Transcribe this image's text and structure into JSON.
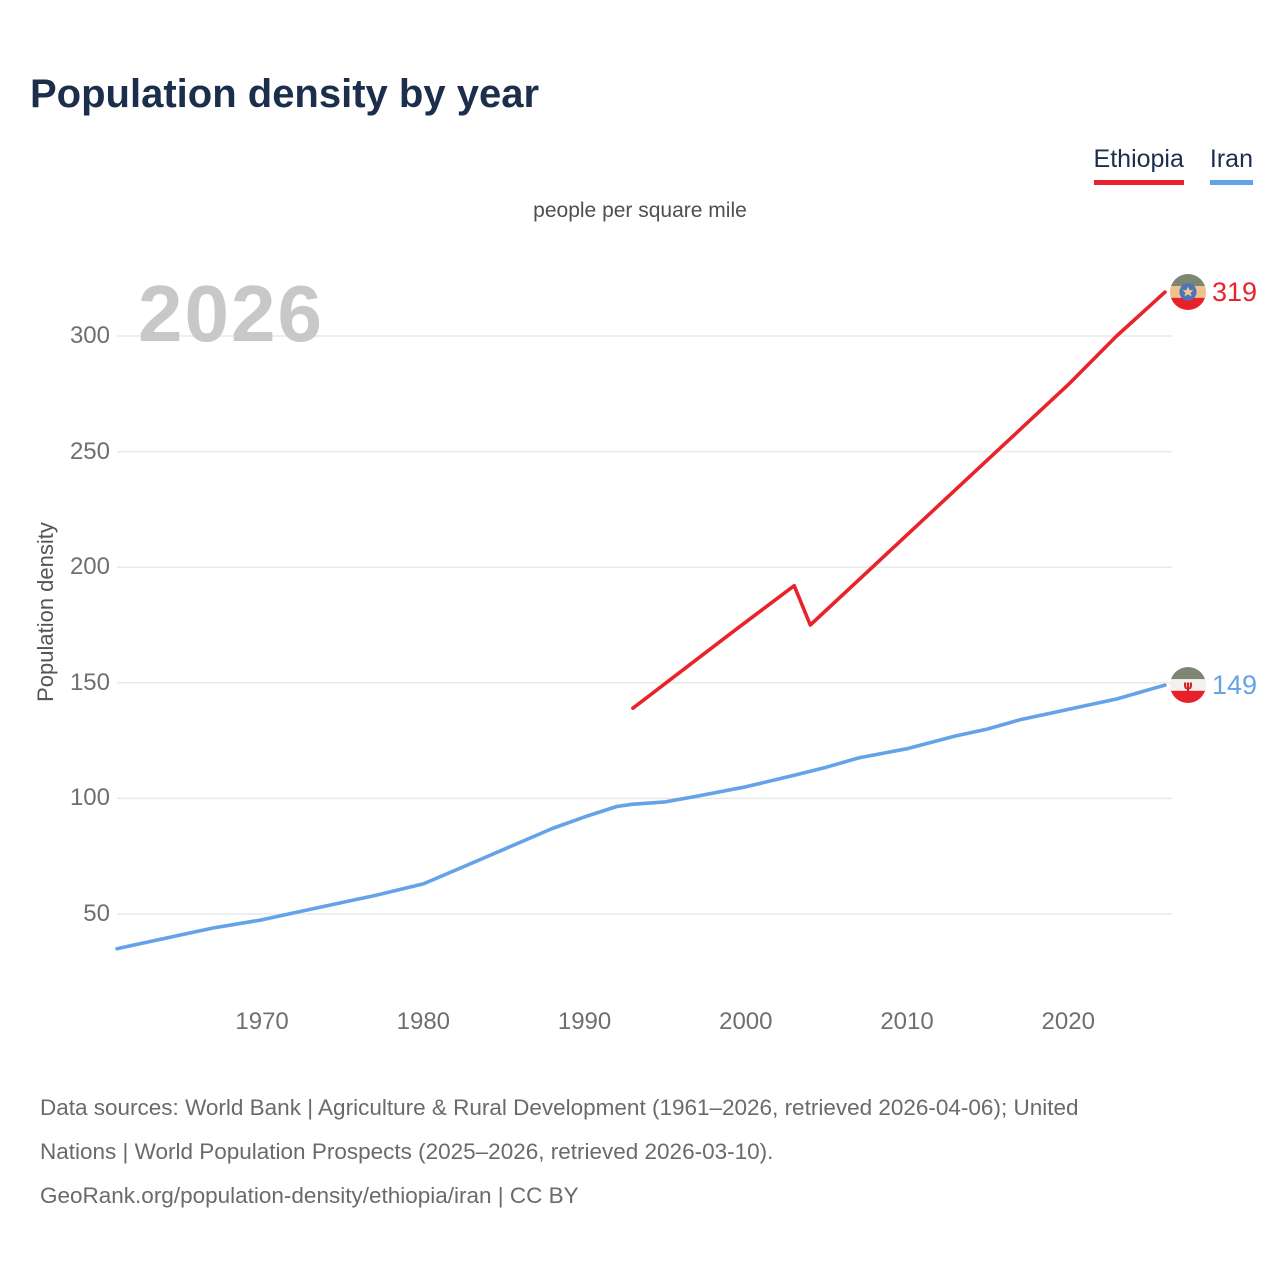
{
  "title": "Population density by year",
  "subtitle": "people per square mile",
  "watermark_year": "2026",
  "legend": [
    {
      "label": "Ethiopia",
      "color": "#e8232a"
    },
    {
      "label": "Iran",
      "color": "#64a3e8"
    }
  ],
  "y_axis_title": "Population density",
  "end_labels": {
    "ethiopia": "319",
    "iran": "149"
  },
  "icons": {
    "ethiopia": "ethiopia-flag-icon",
    "iran": "iran-flag-icon"
  },
  "footer": {
    "lines": [
      "Data sources: World Bank | Agriculture & Rural Development (1961–2026, retrieved 2026-04-06); United",
      "Nations | World Population Prospects (2025–2026, retrieved 2026-03-10).",
      "GeoRank.org/population-density/ethiopia/iran | CC BY"
    ]
  },
  "chart_data": {
    "type": "line",
    "title": "Population density by year",
    "subtitle": "people per square mile",
    "ylabel": "Population density",
    "unit": "people per square mile",
    "xlim": [
      1961,
      2026
    ],
    "ylim": [
      30,
      330
    ],
    "x_ticks": [
      1970,
      1980,
      1990,
      2000,
      2010,
      2020
    ],
    "y_ticks": [
      50,
      100,
      150,
      200,
      250,
      300
    ],
    "grid": "horizontal",
    "legend_position": "top-right",
    "series": [
      {
        "name": "Ethiopia",
        "color": "#e8232a",
        "end_value": 319,
        "points": [
          [
            1993,
            139
          ],
          [
            1996,
            155
          ],
          [
            1999,
            171
          ],
          [
            2003,
            192
          ],
          [
            2004,
            175
          ],
          [
            2008,
            201
          ],
          [
            2012,
            227
          ],
          [
            2016,
            253
          ],
          [
            2020,
            279
          ],
          [
            2023,
            300
          ],
          [
            2026,
            319
          ]
        ]
      },
      {
        "name": "Iran",
        "color": "#64a3e8",
        "end_value": 149,
        "points": [
          [
            1961,
            35
          ],
          [
            1963,
            38
          ],
          [
            1965,
            41
          ],
          [
            1967,
            44
          ],
          [
            1970,
            47.5
          ],
          [
            1972,
            50.5
          ],
          [
            1975,
            55
          ],
          [
            1977,
            58
          ],
          [
            1980,
            63
          ],
          [
            1982,
            69
          ],
          [
            1985,
            78
          ],
          [
            1988,
            87
          ],
          [
            1990,
            92
          ],
          [
            1992,
            96.5
          ],
          [
            1993,
            97.5
          ],
          [
            1995,
            98.5
          ],
          [
            1997,
            101
          ],
          [
            2000,
            105
          ],
          [
            2003,
            110
          ],
          [
            2005,
            113.5
          ],
          [
            2007,
            117.5
          ],
          [
            2010,
            121.5
          ],
          [
            2013,
            127
          ],
          [
            2015,
            130
          ],
          [
            2017,
            134
          ],
          [
            2019,
            137
          ],
          [
            2021,
            140
          ],
          [
            2023,
            143
          ],
          [
            2025,
            147
          ],
          [
            2026,
            149
          ]
        ]
      }
    ]
  }
}
